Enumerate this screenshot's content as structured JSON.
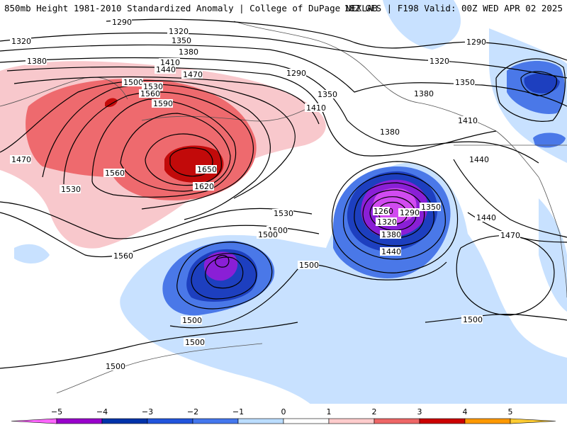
{
  "header": {
    "title_left": "850mb Height 1981-2010 Standardized Anomaly | College of DuPage NEXLAB",
    "title_right": "18Z GFS | F198 Valid: 00Z WED APR 02 2025"
  },
  "colorbar": {
    "ticks": [
      "−5",
      "−4",
      "−3",
      "−2",
      "−1",
      "0",
      "1",
      "2",
      "3",
      "4",
      "5"
    ],
    "colors": [
      "#ff66ff",
      "#9900cc",
      "#0033aa",
      "#2255dd",
      "#4477ee",
      "#bbddff",
      "#ffffff",
      "#ffcccc",
      "#ee6666",
      "#cc0000",
      "#ff9900",
      "#ffcc33"
    ]
  },
  "map": {
    "fill_colors": {
      "light_blue": "#c8e1ff",
      "mid_blue": "#4a78e8",
      "dark_blue": "#1d3fbf",
      "purple": "#8a1fd6",
      "magenta": "#d14bf0",
      "light_pink": "#f8c8cc",
      "salmon": "#ee6a6e",
      "dark_red": "#c20a0a",
      "contour": "#000000",
      "coast": "#555555"
    },
    "contour_labels": [
      "1290",
      "1320",
      "1320",
      "1350",
      "1380",
      "1380",
      "1410",
      "1440",
      "1470",
      "1500",
      "1530",
      "1560",
      "1590",
      "1650",
      "1620",
      "1560",
      "1530",
      "1470",
      "1500",
      "1530",
      "1560",
      "1290",
      "1290",
      "1320",
      "1350",
      "1350",
      "1380",
      "1410",
      "1440",
      "1380",
      "1350",
      "1290",
      "1260",
      "1320",
      "1380",
      "1440",
      "1500",
      "1500",
      "1500",
      "1500",
      "1500",
      "1440",
      "1470",
      "1410",
      "1500"
    ]
  }
}
